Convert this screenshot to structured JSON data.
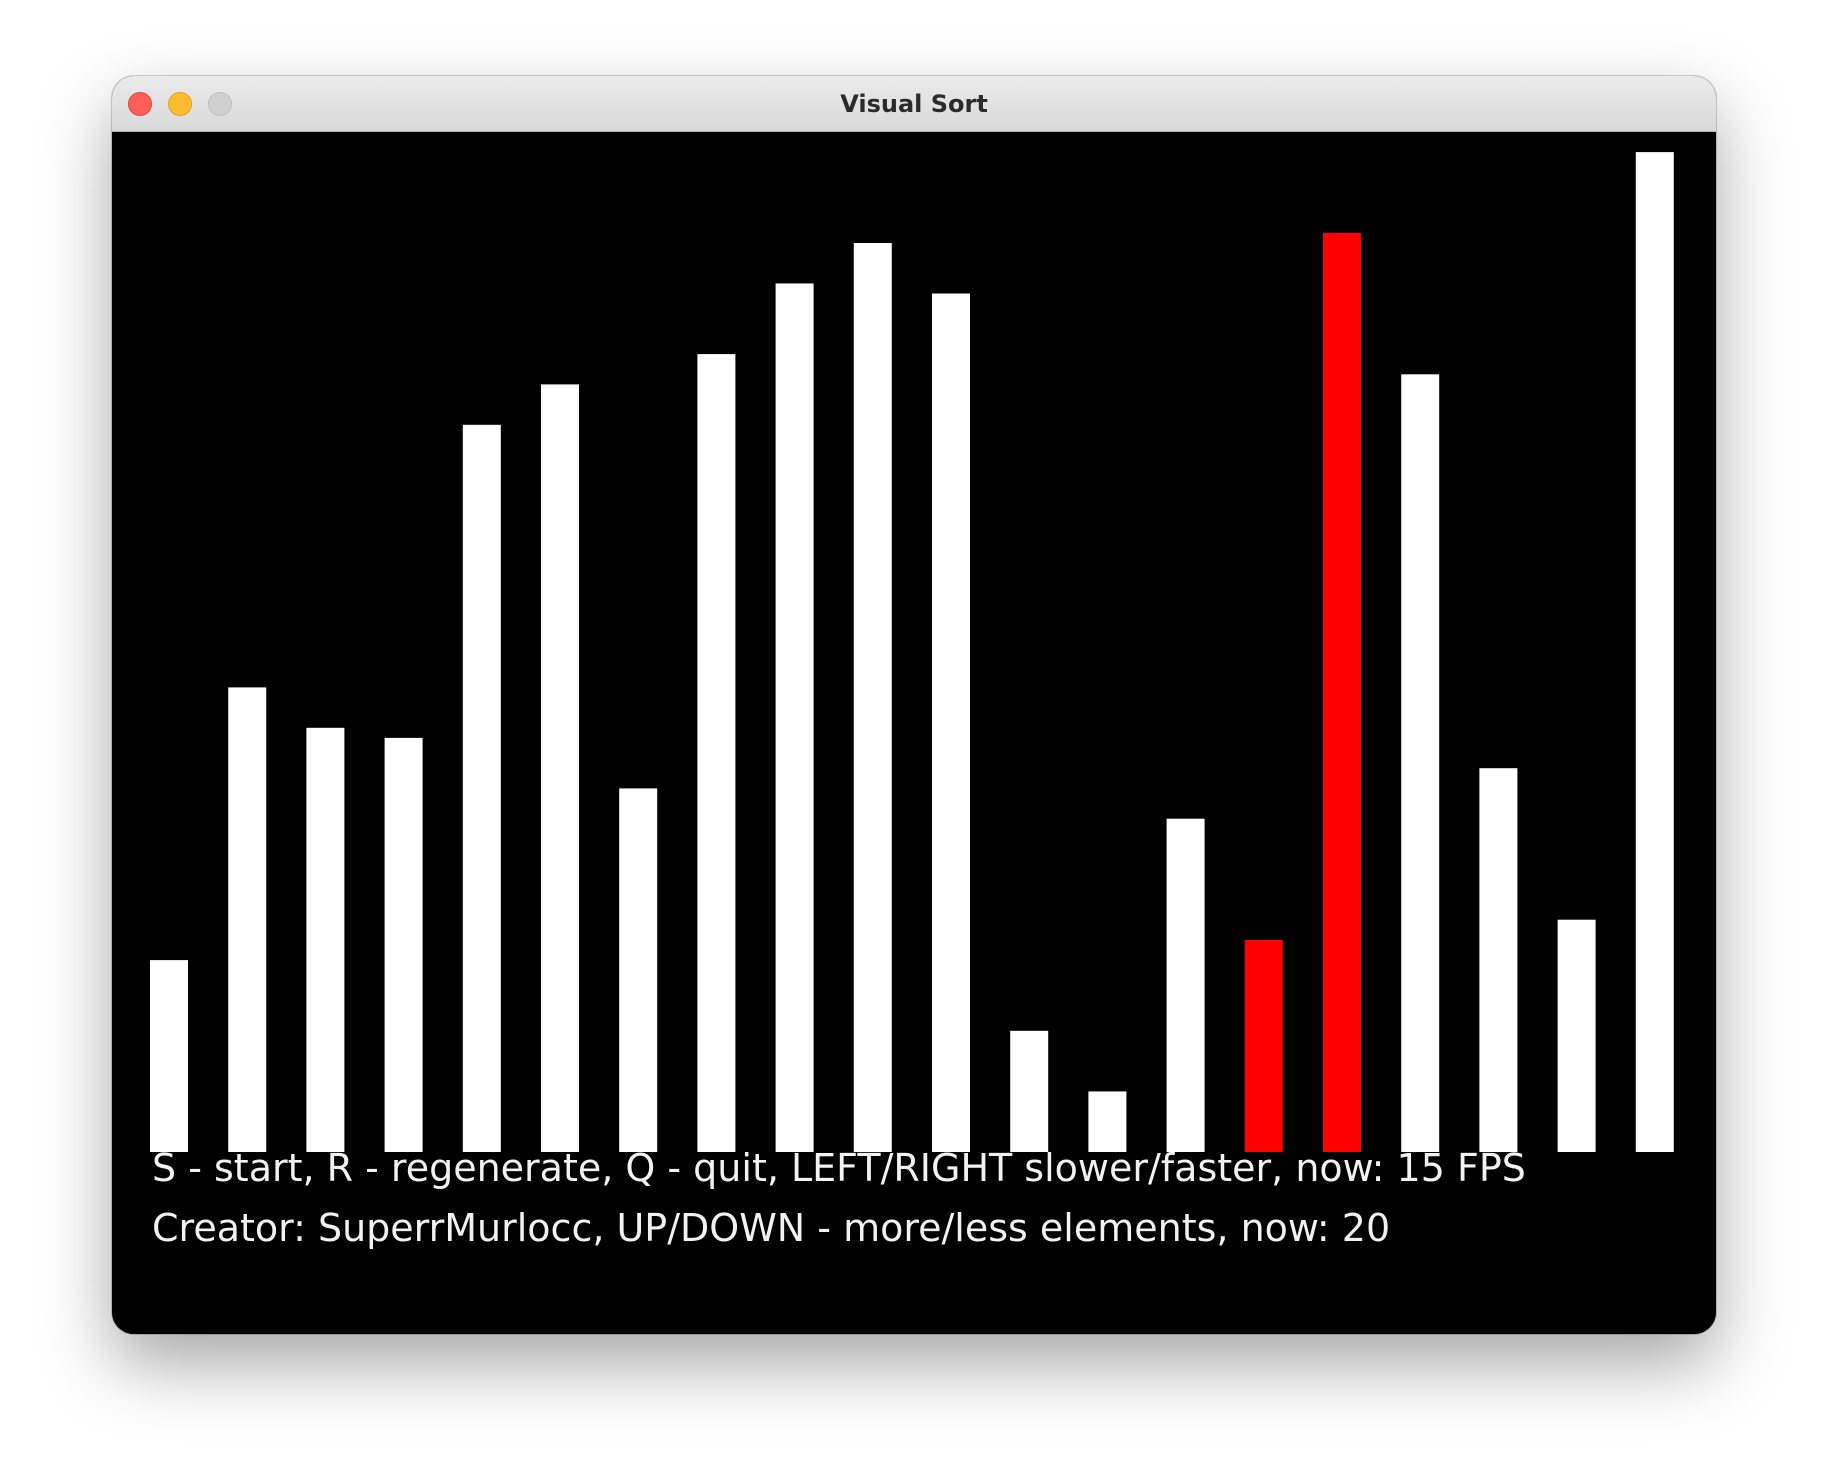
{
  "window": {
    "title": "Visual Sort"
  },
  "help": {
    "line1": "S - start, R - regenerate, Q - quit, LEFT/RIGHT slower/faster, now: 15 FPS",
    "line2": "Creator: SuperrMurlocc, UP/DOWN - more/less elements, now: 20"
  },
  "colors": {
    "bar": "#ffffff",
    "highlight": "#ff0000",
    "background": "#000000"
  },
  "chart_data": {
    "type": "bar",
    "values": [
      19,
      46,
      42,
      41,
      72,
      76,
      36,
      79,
      86,
      90,
      85,
      12,
      6,
      33,
      21,
      91,
      77,
      38,
      23,
      99
    ],
    "highlighted": [
      14,
      15
    ],
    "ylim": [
      0,
      100
    ]
  }
}
